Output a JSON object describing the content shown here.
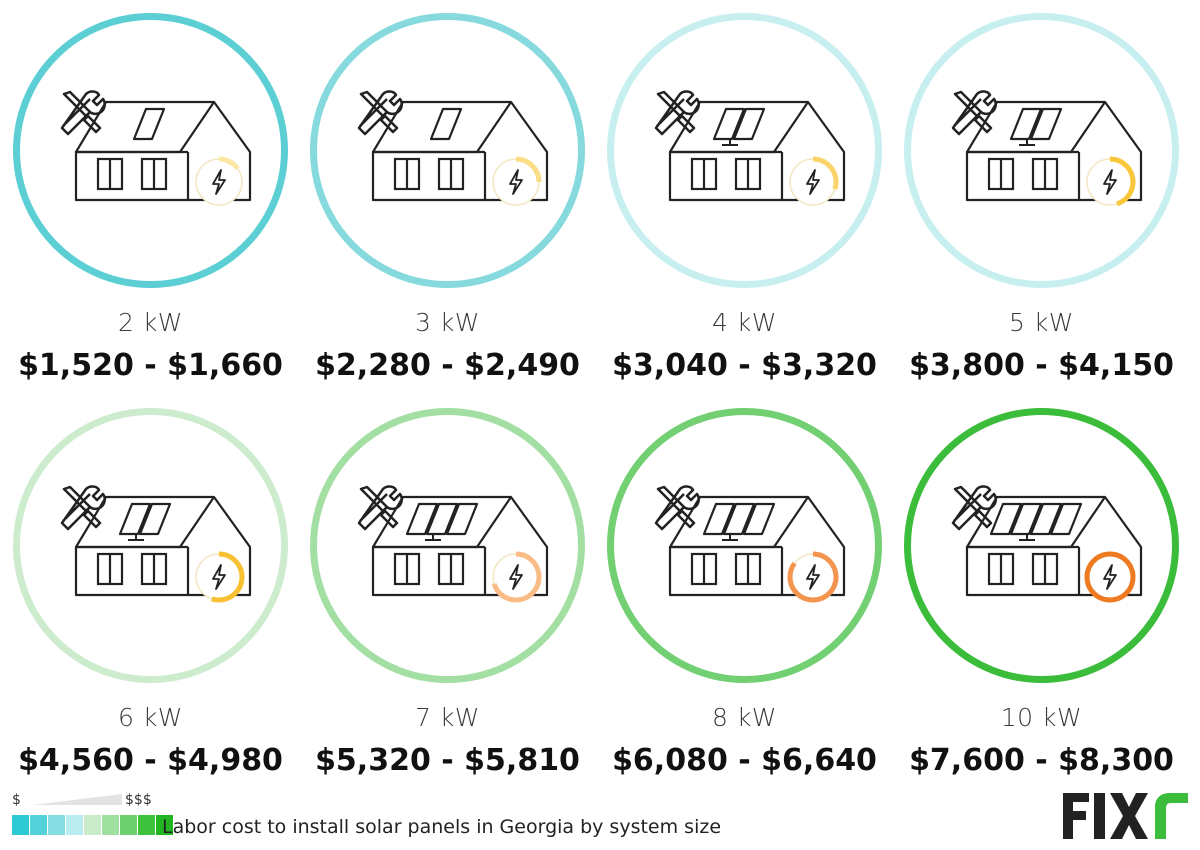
{
  "items": [
    {
      "size": "2 kW",
      "price": "$1,520 - $1,660",
      "ring_color": "#5ccfd4",
      "panels": 1,
      "meter_level": 0.15,
      "meter_color": "#fce7a4"
    },
    {
      "size": "3 kW",
      "price": "$2,280 - $2,490",
      "ring_color": "#86dadd",
      "panels": 1,
      "meter_level": 0.25,
      "meter_color": "#fbdd85"
    },
    {
      "size": "4 kW",
      "price": "$3,040 - $3,320",
      "ring_color": "#c8eff0",
      "panels": 2,
      "meter_level": 0.3,
      "meter_color": "#fbd46d"
    },
    {
      "size": "5 kW",
      "price": "$3,800 - $4,150",
      "ring_color": "#c8eff0",
      "panels": 2,
      "meter_level": 0.45,
      "meter_color": "#f9c739"
    },
    {
      "size": "6 kW",
      "price": "$4,560 - $4,980",
      "ring_color": "#cdeccd",
      "panels": 2,
      "meter_level": 0.55,
      "meter_color": "#f7c133"
    },
    {
      "size": "7 kW",
      "price": "$5,320 - $5,810",
      "ring_color": "#a3dfa3",
      "panels": 3,
      "meter_level": 0.7,
      "meter_color": "#f9bc86"
    },
    {
      "size": "8 kW",
      "price": "$6,080 - $6,640",
      "ring_color": "#72cf72",
      "panels": 3,
      "meter_level": 0.85,
      "meter_color": "#f3954f"
    },
    {
      "size": "10 kW",
      "price": "$7,600 - $8,300",
      "ring_color": "#3bbd3b",
      "panels": 4,
      "meter_level": 1.0,
      "meter_color": "#ee7a22"
    }
  ],
  "legend": {
    "low_label": "$",
    "high_label": "$$$",
    "caption": "Labor cost to install solar panels in Georgia by system size",
    "swatches": [
      "#2ecad4",
      "#55d2d9",
      "#86dde1",
      "#b9ecee",
      "#c9ebc9",
      "#9fdf9f",
      "#6fd06f",
      "#3ec23e",
      "#22b522"
    ]
  },
  "brand": {
    "logo_text": "FIXr",
    "logo_color": "#222222",
    "logo_accent": "#3bbd3b"
  },
  "icons": {
    "tools": "wrench-screwdriver-icon",
    "bolt": "lightning-bolt-icon",
    "house": "house-icon"
  }
}
